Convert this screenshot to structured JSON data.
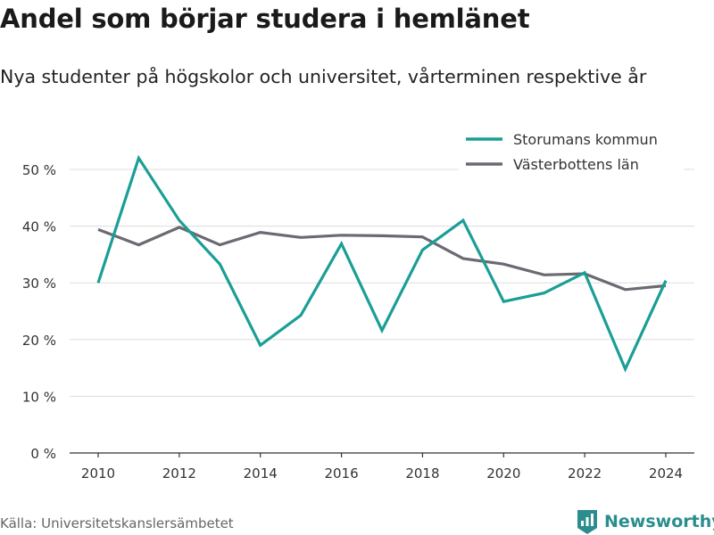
{
  "title": "Andel som börjar studera i hemlänet",
  "subtitle": "Nya studenter på högskolor och universitet, vårterminen respektive år",
  "source": "Källa: Universitetskanslersämbetet",
  "brand": {
    "name": "Newsworthy",
    "icon": "newsworthy-logo-icon",
    "color": "#2b8d8d"
  },
  "chart_data": {
    "type": "line",
    "x": [
      2010,
      2011,
      2012,
      2013,
      2014,
      2015,
      2016,
      2017,
      2018,
      2019,
      2020,
      2021,
      2022,
      2023,
      2024
    ],
    "x_tick_labels": [
      "2010",
      "2012",
      "2014",
      "2016",
      "2018",
      "2020",
      "2022",
      "2024"
    ],
    "y_tick_labels": [
      "0 %",
      "10 %",
      "20 %",
      "30 %",
      "40 %",
      "50 %"
    ],
    "ylim": [
      0,
      50
    ],
    "grid": true,
    "legend_position": "top-right",
    "series": [
      {
        "name": "Storumans kommun",
        "color": "#1a9e96",
        "values": [
          30,
          52,
          41,
          33.3,
          19,
          24.3,
          36.9,
          21.6,
          35.8,
          41,
          26.7,
          28.2,
          31.8,
          14.8,
          30.4
        ]
      },
      {
        "name": "Västerbottens län",
        "color": "#6b6a72",
        "values": [
          39.4,
          36.7,
          39.8,
          36.7,
          38.9,
          38,
          38.4,
          38.3,
          38.1,
          34.3,
          33.3,
          31.4,
          31.6,
          28.8,
          29.5
        ]
      }
    ]
  }
}
